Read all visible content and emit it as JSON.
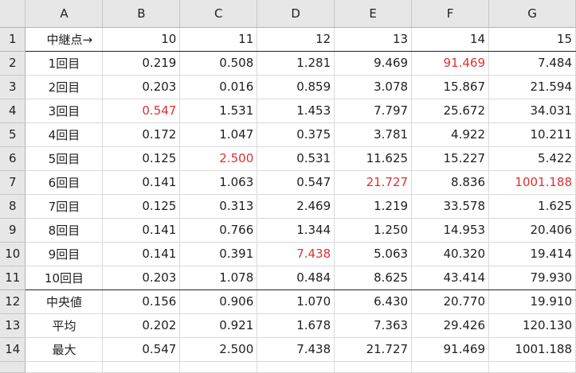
{
  "columns": [
    "A",
    "B",
    "C",
    "D",
    "E",
    "F",
    "G"
  ],
  "rows": [
    {
      "num": "1",
      "label": "中継点→",
      "cells": [
        {
          "v": "10"
        },
        {
          "v": "11"
        },
        {
          "v": "12"
        },
        {
          "v": "13"
        },
        {
          "v": "14"
        },
        {
          "v": "15"
        }
      ]
    },
    {
      "num": "2",
      "label": "1回目",
      "cells": [
        {
          "v": "0.219"
        },
        {
          "v": "0.508"
        },
        {
          "v": "1.281"
        },
        {
          "v": "9.469"
        },
        {
          "v": "91.469",
          "red": true
        },
        {
          "v": "7.484"
        }
      ]
    },
    {
      "num": "3",
      "label": "2回目",
      "cells": [
        {
          "v": "0.203"
        },
        {
          "v": "0.016"
        },
        {
          "v": "0.859"
        },
        {
          "v": "3.078"
        },
        {
          "v": "15.867"
        },
        {
          "v": "21.594"
        }
      ]
    },
    {
      "num": "4",
      "label": "3回目",
      "cells": [
        {
          "v": "0.547",
          "red": true
        },
        {
          "v": "1.531"
        },
        {
          "v": "1.453"
        },
        {
          "v": "7.797"
        },
        {
          "v": "25.672"
        },
        {
          "v": "34.031"
        }
      ]
    },
    {
      "num": "5",
      "label": "4回目",
      "cells": [
        {
          "v": "0.172"
        },
        {
          "v": "1.047"
        },
        {
          "v": "0.375"
        },
        {
          "v": "3.781"
        },
        {
          "v": "4.922"
        },
        {
          "v": "10.211"
        }
      ]
    },
    {
      "num": "6",
      "label": "5回目",
      "cells": [
        {
          "v": "0.125"
        },
        {
          "v": "2.500",
          "red": true
        },
        {
          "v": "0.531"
        },
        {
          "v": "11.625"
        },
        {
          "v": "15.227"
        },
        {
          "v": "5.422"
        }
      ]
    },
    {
      "num": "7",
      "label": "6回目",
      "cells": [
        {
          "v": "0.141"
        },
        {
          "v": "1.063"
        },
        {
          "v": "0.547"
        },
        {
          "v": "21.727",
          "red": true
        },
        {
          "v": "8.836"
        },
        {
          "v": "1001.188",
          "red": true
        }
      ]
    },
    {
      "num": "8",
      "label": "7回目",
      "cells": [
        {
          "v": "0.125"
        },
        {
          "v": "0.313"
        },
        {
          "v": "2.469"
        },
        {
          "v": "1.219"
        },
        {
          "v": "33.578"
        },
        {
          "v": "1.625"
        }
      ]
    },
    {
      "num": "9",
      "label": "8回目",
      "cells": [
        {
          "v": "0.141"
        },
        {
          "v": "0.766"
        },
        {
          "v": "1.344"
        },
        {
          "v": "1.250"
        },
        {
          "v": "14.953"
        },
        {
          "v": "20.406"
        }
      ]
    },
    {
      "num": "10",
      "label": "9回目",
      "cells": [
        {
          "v": "0.141"
        },
        {
          "v": "0.391"
        },
        {
          "v": "7.438",
          "red": true
        },
        {
          "v": "5.063"
        },
        {
          "v": "40.320"
        },
        {
          "v": "19.414"
        }
      ]
    },
    {
      "num": "11",
      "label": "10回目",
      "cells": [
        {
          "v": "0.203"
        },
        {
          "v": "1.078"
        },
        {
          "v": "0.484"
        },
        {
          "v": "8.625"
        },
        {
          "v": "43.414"
        },
        {
          "v": "79.930"
        }
      ]
    },
    {
      "num": "12",
      "label": "中央値",
      "cells": [
        {
          "v": "0.156"
        },
        {
          "v": "0.906"
        },
        {
          "v": "1.070"
        },
        {
          "v": "6.430"
        },
        {
          "v": "20.770"
        },
        {
          "v": "19.910"
        }
      ]
    },
    {
      "num": "13",
      "label": "平均",
      "cells": [
        {
          "v": "0.202"
        },
        {
          "v": "0.921"
        },
        {
          "v": "1.678"
        },
        {
          "v": "7.363"
        },
        {
          "v": "29.426"
        },
        {
          "v": "120.130"
        }
      ]
    },
    {
      "num": "14",
      "label": "最大",
      "cells": [
        {
          "v": "0.547"
        },
        {
          "v": "2.500"
        },
        {
          "v": "7.438"
        },
        {
          "v": "21.727"
        },
        {
          "v": "91.469"
        },
        {
          "v": "1001.188"
        }
      ]
    }
  ],
  "colors": {
    "highlight": "#e03030",
    "header_bg": "#e7e7e7",
    "gridline": "#dadada"
  }
}
